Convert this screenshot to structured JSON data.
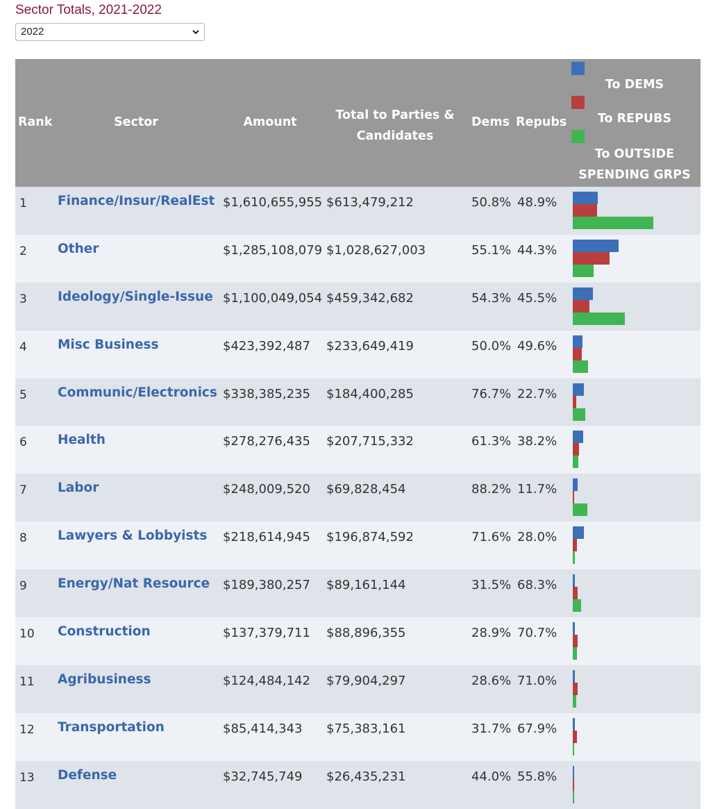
{
  "title": "Sector Totals, 2021-2022",
  "year_select": {
    "value": "2022"
  },
  "headers": {
    "rank": "Rank",
    "sector": "Sector",
    "amount": "Amount",
    "total_line1": "Total to Parties &",
    "total_line2": "Candidates",
    "dems": "Dems",
    "repubs": "Repubs",
    "legend_dems": "To DEMS",
    "legend_repubs": "To REPUBS",
    "legend_outside_line1": "To OUTSIDE",
    "legend_outside_line2": "SPENDING GRPS"
  },
  "colors": {
    "dems": "#3c6fb8",
    "repubs": "#b93e3e",
    "outside": "#3fb652",
    "header_bg": "#999999",
    "link": "#3a67ac"
  },
  "rows": [
    {
      "rank": "1",
      "sector": "Finance/Insur/RealEst",
      "amount": "$1,610,655,955",
      "total": "$613,479,212",
      "dems": "50.8%",
      "repubs": "48.9%",
      "to_dems": 311,
      "to_repubs": 300,
      "to_outside": 997
    },
    {
      "rank": "2",
      "sector": "Other",
      "amount": "$1,285,108,079",
      "total": "$1,028,627,003",
      "dems": "55.1%",
      "repubs": "44.3%",
      "to_dems": 567,
      "to_repubs": 456,
      "to_outside": 257
    },
    {
      "rank": "3",
      "sector": "Ideology/Single-Issue",
      "amount": "$1,100,049,054",
      "total": "$459,342,682",
      "dems": "54.3%",
      "repubs": "45.5%",
      "to_dems": 249,
      "to_repubs": 209,
      "to_outside": 641
    },
    {
      "rank": "4",
      "sector": "Misc Business",
      "amount": "$423,392,487",
      "total": "$233,649,419",
      "dems": "50.0%",
      "repubs": "49.6%",
      "to_dems": 117,
      "to_repubs": 116,
      "to_outside": 190
    },
    {
      "rank": "5",
      "sector": "Communic/Electronics",
      "amount": "$338,385,235",
      "total": "$184,400,285",
      "dems": "76.7%",
      "repubs": "22.7%",
      "to_dems": 141,
      "to_repubs": 42,
      "to_outside": 154
    },
    {
      "rank": "6",
      "sector": "Health",
      "amount": "$278,276,435",
      "total": "$207,715,332",
      "dems": "61.3%",
      "repubs": "38.2%",
      "to_dems": 127,
      "to_repubs": 79,
      "to_outside": 71
    },
    {
      "rank": "7",
      "sector": "Labor",
      "amount": "$248,009,520",
      "total": "$69,828,454",
      "dems": "88.2%",
      "repubs": "11.7%",
      "to_dems": 62,
      "to_repubs": 8,
      "to_outside": 178
    },
    {
      "rank": "8",
      "sector": "Lawyers & Lobbyists",
      "amount": "$218,614,945",
      "total": "$196,874,592",
      "dems": "71.6%",
      "repubs": "28.0%",
      "to_dems": 141,
      "to_repubs": 55,
      "to_outside": 22
    },
    {
      "rank": "9",
      "sector": "Energy/Nat Resource",
      "amount": "$189,380,257",
      "total": "$89,161,144",
      "dems": "31.5%",
      "repubs": "68.3%",
      "to_dems": 28,
      "to_repubs": 61,
      "to_outside": 100
    },
    {
      "rank": "10",
      "sector": "Construction",
      "amount": "$137,379,711",
      "total": "$88,896,355",
      "dems": "28.9%",
      "repubs": "70.7%",
      "to_dems": 26,
      "to_repubs": 63,
      "to_outside": 48
    },
    {
      "rank": "11",
      "sector": "Agribusiness",
      "amount": "$124,484,142",
      "total": "$79,904,297",
      "dems": "28.6%",
      "repubs": "71.0%",
      "to_dems": 23,
      "to_repubs": 57,
      "to_outside": 45
    },
    {
      "rank": "12",
      "sector": "Transportation",
      "amount": "$85,414,343",
      "total": "$75,383,161",
      "dems": "31.7%",
      "repubs": "67.9%",
      "to_dems": 24,
      "to_repubs": 51,
      "to_outside": 10
    },
    {
      "rank": "13",
      "sector": "Defense",
      "amount": "$32,745,749",
      "total": "$26,435,231",
      "dems": "44.0%",
      "repubs": "55.8%",
      "to_dems": 12,
      "to_repubs": 15,
      "to_outside": 6
    }
  ]
}
